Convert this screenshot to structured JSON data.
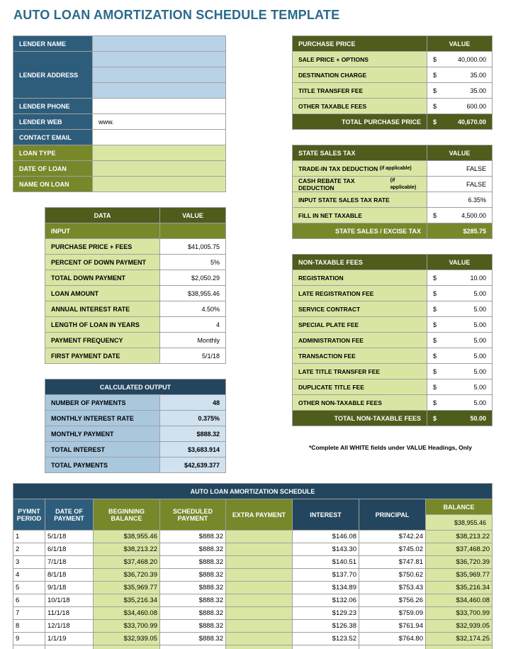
{
  "title": "AUTO LOAN AMORTIZATION SCHEDULE TEMPLATE",
  "note": "*Complete All WHITE fields under VALUE Headings, Only",
  "lender": [
    {
      "label": "LENDER NAME"
    },
    {
      "label": "LENDER ADDRESS"
    },
    {
      "label": "LENDER PHONE"
    },
    {
      "label": "LENDER WEB",
      "value": "www."
    },
    {
      "label": "CONTACT EMAIL"
    },
    {
      "label": "LOAN TYPE"
    },
    {
      "label": "DATE OF LOAN"
    },
    {
      "label": "NAME ON LOAN"
    }
  ],
  "purchase_price": {
    "headers": [
      "PURCHASE PRICE",
      "VALUE"
    ],
    "rows": [
      {
        "label": "SALE PRICE + OPTIONS",
        "currency": "$",
        "value": "40,000.00"
      },
      {
        "label": "DESTINATION CHARGE",
        "currency": "$",
        "value": "35.00"
      },
      {
        "label": "TITLE TRANSFER FEE",
        "currency": "$",
        "value": "35.00"
      },
      {
        "label": "OTHER TAXABLE FEES",
        "currency": "$",
        "value": "600.00"
      }
    ],
    "total": {
      "label": "TOTAL PURCHASE PRICE",
      "currency": "$",
      "value": "40,670.00"
    }
  },
  "state_sales_tax": {
    "headers": [
      "STATE SALES TAX",
      "VALUE"
    ],
    "rows": [
      {
        "label": "TRADE-IN TAX DEDUCTION",
        "note": "(if applicable)",
        "value": "FALSE"
      },
      {
        "label": "CASH REBATE TAX DEDUCTION",
        "note": "(if applicable)",
        "value": "FALSE"
      },
      {
        "label": "INPUT STATE SALES TAX RATE",
        "value": "6.35%"
      },
      {
        "label": "FILL IN NET TAXABLE",
        "currency": "$",
        "value": "4,500.00"
      }
    ],
    "total": {
      "label": "STATE SALES / EXCISE TAX",
      "value": "$285.75"
    }
  },
  "data": {
    "headers": [
      "DATA",
      "VALUE"
    ],
    "section": "INPUT",
    "rows": [
      {
        "label": "PURCHASE PRICE + FEES",
        "value": "$41,005.75"
      },
      {
        "label": "PERCENT OF DOWN PAYMENT",
        "value": "5%"
      },
      {
        "label": "TOTAL DOWN PAYMENT",
        "value": "$2,050.29"
      },
      {
        "label": "LOAN AMOUNT",
        "value": "$38,955.46"
      },
      {
        "label": "ANNUAL INTEREST RATE",
        "value": "4.50%"
      },
      {
        "label": "LENGTH OF LOAN IN YEARS",
        "value": "4"
      },
      {
        "label": "PAYMENT FREQUENCY",
        "value": "Monthly"
      },
      {
        "label": "FIRST PAYMENT DATE",
        "value": "5/1/18"
      }
    ]
  },
  "non_taxable_fees": {
    "headers": [
      "NON-TAXABLE FEES",
      "VALUE"
    ],
    "rows": [
      {
        "label": "REGISTRATION",
        "currency": "$",
        "value": "10.00"
      },
      {
        "label": "LATE REGISTRATION FEE",
        "currency": "$",
        "value": "5.00"
      },
      {
        "label": "SERVICE CONTRACT",
        "currency": "$",
        "value": "5.00"
      },
      {
        "label": "SPECIAL PLATE FEE",
        "currency": "$",
        "value": "5.00"
      },
      {
        "label": "ADMINISTRATION FEE",
        "currency": "$",
        "value": "5.00"
      },
      {
        "label": "TRANSACTION FEE",
        "currency": "$",
        "value": "5.00"
      },
      {
        "label": "LATE TITLE TRANSFER FEE",
        "currency": "$",
        "value": "5.00"
      },
      {
        "label": "DUPLICATE TITLE FEE",
        "currency": "$",
        "value": "5.00"
      },
      {
        "label": "OTHER NON-TAXABLE FEES",
        "currency": "$",
        "value": "5.00"
      }
    ],
    "total": {
      "label": "TOTAL NON-TAXABLE FEES",
      "currency": "$",
      "value": "50.00"
    }
  },
  "calculated_output": {
    "header": "CALCULATED OUTPUT",
    "rows": [
      {
        "label": "NUMBER OF PAYMENTS",
        "value": "48"
      },
      {
        "label": "MONTHLY INTEREST RATE",
        "value": "0.375%"
      },
      {
        "label": "MONTHLY PAYMENT",
        "value": "$888.32"
      },
      {
        "label": "TOTAL INTEREST",
        "value": "$3,683.914"
      },
      {
        "label": "TOTAL PAYMENTS",
        "value": "$42,639.377"
      }
    ]
  },
  "schedule": {
    "title": "AUTO LOAN AMORTIZATION SCHEDULE",
    "columns": [
      "PYMNT PERIOD",
      "DATE OF PAYMENT",
      "BEGINNING BALANCE",
      "SCHEDULED PAYMENT",
      "EXTRA PAYMENT",
      "INTEREST",
      "PRINCIPAL",
      "BALANCE"
    ],
    "starting_balance": "$38,955.46",
    "rows": [
      {
        "period": "1",
        "date": "5/1/18",
        "beginning_balance": "$38,955.46",
        "scheduled_payment": "$888.32",
        "interest": "$146.08",
        "principal": "$742.24",
        "balance": "$38,213.22"
      },
      {
        "period": "2",
        "date": "6/1/18",
        "beginning_balance": "$38,213.22",
        "scheduled_payment": "$888.32",
        "interest": "$143.30",
        "principal": "$745.02",
        "balance": "$37,468.20"
      },
      {
        "period": "3",
        "date": "7/1/18",
        "beginning_balance": "$37,468.20",
        "scheduled_payment": "$888.32",
        "interest": "$140.51",
        "principal": "$747.81",
        "balance": "$36,720.39"
      },
      {
        "period": "4",
        "date": "8/1/18",
        "beginning_balance": "$36,720.39",
        "scheduled_payment": "$888.32",
        "interest": "$137.70",
        "principal": "$750.62",
        "balance": "$35,969.77"
      },
      {
        "period": "5",
        "date": "9/1/18",
        "beginning_balance": "$35,969.77",
        "scheduled_payment": "$888.32",
        "interest": "$134.89",
        "principal": "$753.43",
        "balance": "$35,216.34"
      },
      {
        "period": "6",
        "date": "10/1/18",
        "beginning_balance": "$35,216.34",
        "scheduled_payment": "$888.32",
        "interest": "$132.06",
        "principal": "$756.26",
        "balance": "$34,460.08"
      },
      {
        "period": "7",
        "date": "11/1/18",
        "beginning_balance": "$34,460.08",
        "scheduled_payment": "$888.32",
        "interest": "$129.23",
        "principal": "$759.09",
        "balance": "$33,700.99"
      },
      {
        "period": "8",
        "date": "12/1/18",
        "beginning_balance": "$33,700.99",
        "scheduled_payment": "$888.32",
        "interest": "$126.38",
        "principal": "$761.94",
        "balance": "$32,939.05"
      },
      {
        "period": "9",
        "date": "1/1/19",
        "beginning_balance": "$32,939.05",
        "scheduled_payment": "$888.32",
        "interest": "$123.52",
        "principal": "$764.80",
        "balance": "$32,174.25"
      }
    ]
  }
}
